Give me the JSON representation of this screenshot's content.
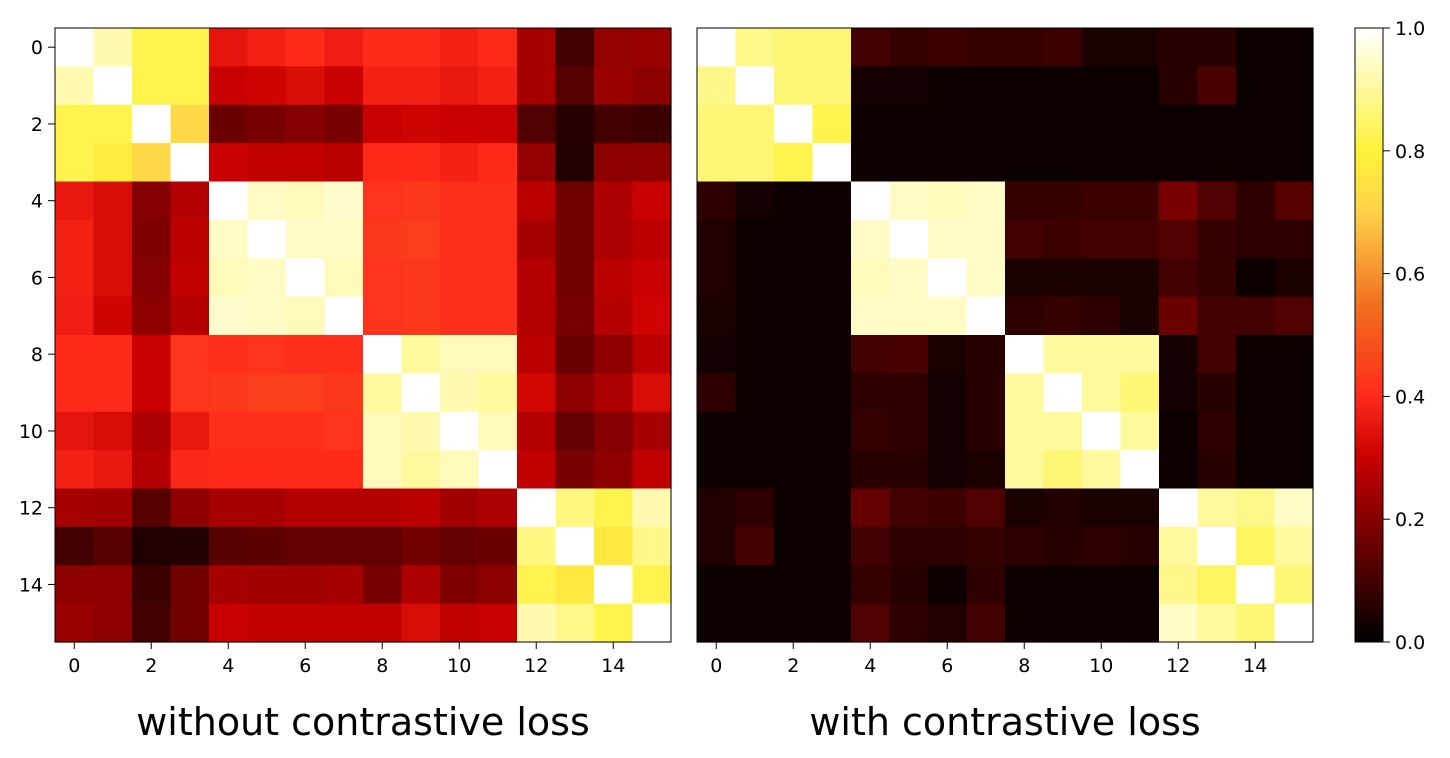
{
  "chart_data": [
    {
      "type": "heatmap",
      "title": "",
      "caption": "without contrastive loss",
      "xlabel": "",
      "ylabel": "",
      "x_ticks": [
        "0",
        "2",
        "4",
        "6",
        "8",
        "10",
        "12",
        "14"
      ],
      "y_ticks": [
        "0",
        "2",
        "4",
        "6",
        "8",
        "10",
        "12",
        "14"
      ],
      "size": 16,
      "vmin": 0.0,
      "vmax": 1.0,
      "colormap": "hot",
      "values": [
        [
          1.0,
          0.92,
          0.82,
          0.82,
          0.35,
          0.38,
          0.4,
          0.37,
          0.4,
          0.4,
          0.38,
          0.4,
          0.25,
          0.1,
          0.22,
          0.23
        ],
        [
          0.92,
          1.0,
          0.82,
          0.82,
          0.3,
          0.31,
          0.33,
          0.3,
          0.38,
          0.38,
          0.36,
          0.38,
          0.25,
          0.13,
          0.23,
          0.21
        ],
        [
          0.82,
          0.82,
          1.0,
          0.72,
          0.16,
          0.18,
          0.2,
          0.18,
          0.3,
          0.31,
          0.3,
          0.3,
          0.12,
          0.06,
          0.1,
          0.09
        ],
        [
          0.82,
          0.78,
          0.72,
          1.0,
          0.3,
          0.29,
          0.29,
          0.28,
          0.4,
          0.4,
          0.38,
          0.4,
          0.22,
          0.05,
          0.21,
          0.21
        ],
        [
          0.36,
          0.33,
          0.2,
          0.27,
          1.0,
          0.94,
          0.93,
          0.95,
          0.42,
          0.43,
          0.41,
          0.41,
          0.28,
          0.17,
          0.26,
          0.3
        ],
        [
          0.38,
          0.33,
          0.19,
          0.28,
          0.94,
          1.0,
          0.94,
          0.94,
          0.43,
          0.44,
          0.41,
          0.41,
          0.25,
          0.17,
          0.26,
          0.28
        ],
        [
          0.38,
          0.33,
          0.2,
          0.29,
          0.93,
          0.94,
          1.0,
          0.93,
          0.42,
          0.43,
          0.41,
          0.41,
          0.27,
          0.17,
          0.28,
          0.3
        ],
        [
          0.37,
          0.31,
          0.21,
          0.27,
          0.95,
          0.94,
          0.93,
          1.0,
          0.42,
          0.43,
          0.41,
          0.41,
          0.27,
          0.18,
          0.27,
          0.31
        ],
        [
          0.4,
          0.4,
          0.3,
          0.42,
          0.41,
          0.42,
          0.41,
          0.41,
          1.0,
          0.9,
          0.93,
          0.93,
          0.28,
          0.16,
          0.21,
          0.28
        ],
        [
          0.4,
          0.4,
          0.3,
          0.42,
          0.43,
          0.44,
          0.44,
          0.43,
          0.9,
          1.0,
          0.92,
          0.9,
          0.32,
          0.21,
          0.26,
          0.33
        ],
        [
          0.35,
          0.33,
          0.26,
          0.36,
          0.41,
          0.41,
          0.41,
          0.42,
          0.93,
          0.92,
          1.0,
          0.93,
          0.27,
          0.15,
          0.2,
          0.25
        ],
        [
          0.38,
          0.36,
          0.27,
          0.39,
          0.4,
          0.4,
          0.4,
          0.4,
          0.93,
          0.9,
          0.93,
          1.0,
          0.29,
          0.18,
          0.21,
          0.29
        ],
        [
          0.25,
          0.24,
          0.13,
          0.21,
          0.25,
          0.25,
          0.27,
          0.27,
          0.27,
          0.28,
          0.24,
          0.26,
          1.0,
          0.87,
          0.82,
          0.92
        ],
        [
          0.1,
          0.13,
          0.05,
          0.05,
          0.13,
          0.14,
          0.15,
          0.15,
          0.15,
          0.17,
          0.15,
          0.16,
          0.87,
          1.0,
          0.77,
          0.88
        ],
        [
          0.21,
          0.21,
          0.09,
          0.17,
          0.25,
          0.24,
          0.24,
          0.25,
          0.18,
          0.26,
          0.19,
          0.21,
          0.82,
          0.77,
          1.0,
          0.82
        ],
        [
          0.23,
          0.21,
          0.1,
          0.17,
          0.3,
          0.29,
          0.29,
          0.29,
          0.29,
          0.33,
          0.29,
          0.3,
          0.92,
          0.88,
          0.82,
          1.0
        ]
      ]
    },
    {
      "type": "heatmap",
      "title": "",
      "caption": "with contrastive loss",
      "xlabel": "",
      "ylabel": "",
      "x_ticks": [
        "0",
        "2",
        "4",
        "6",
        "8",
        "10",
        "12",
        "14"
      ],
      "y_ticks": [],
      "size": 16,
      "vmin": 0.0,
      "vmax": 1.0,
      "colormap": "hot",
      "values": [
        [
          1.0,
          0.88,
          0.86,
          0.86,
          0.1,
          0.08,
          0.09,
          0.08,
          0.08,
          0.09,
          0.04,
          0.04,
          0.06,
          0.06,
          0.02,
          0.02
        ],
        [
          0.88,
          1.0,
          0.86,
          0.86,
          0.03,
          0.03,
          0.02,
          0.02,
          0.02,
          0.02,
          0.02,
          0.02,
          0.06,
          0.11,
          0.02,
          0.02
        ],
        [
          0.86,
          0.86,
          1.0,
          0.82,
          0.02,
          0.02,
          0.02,
          0.02,
          0.02,
          0.02,
          0.02,
          0.02,
          0.02,
          0.02,
          0.02,
          0.02
        ],
        [
          0.86,
          0.86,
          0.82,
          1.0,
          0.02,
          0.02,
          0.02,
          0.02,
          0.02,
          0.02,
          0.02,
          0.02,
          0.02,
          0.02,
          0.02,
          0.02
        ],
        [
          0.07,
          0.03,
          0.02,
          0.02,
          1.0,
          0.94,
          0.93,
          0.94,
          0.08,
          0.08,
          0.09,
          0.09,
          0.18,
          0.12,
          0.07,
          0.13
        ],
        [
          0.05,
          0.02,
          0.02,
          0.02,
          0.94,
          1.0,
          0.94,
          0.94,
          0.1,
          0.09,
          0.1,
          0.1,
          0.12,
          0.08,
          0.07,
          0.07
        ],
        [
          0.05,
          0.02,
          0.02,
          0.02,
          0.93,
          0.94,
          1.0,
          0.94,
          0.04,
          0.04,
          0.04,
          0.04,
          0.1,
          0.08,
          0.02,
          0.04
        ],
        [
          0.04,
          0.02,
          0.02,
          0.02,
          0.94,
          0.94,
          0.94,
          1.0,
          0.07,
          0.08,
          0.07,
          0.04,
          0.16,
          0.1,
          0.1,
          0.12
        ],
        [
          0.03,
          0.02,
          0.02,
          0.02,
          0.1,
          0.11,
          0.04,
          0.06,
          1.0,
          0.9,
          0.9,
          0.9,
          0.03,
          0.1,
          0.02,
          0.02
        ],
        [
          0.07,
          0.02,
          0.02,
          0.02,
          0.07,
          0.07,
          0.03,
          0.06,
          0.9,
          1.0,
          0.9,
          0.86,
          0.03,
          0.06,
          0.02,
          0.02
        ],
        [
          0.02,
          0.02,
          0.02,
          0.02,
          0.08,
          0.07,
          0.03,
          0.06,
          0.9,
          0.9,
          1.0,
          0.9,
          0.02,
          0.07,
          0.02,
          0.02
        ],
        [
          0.02,
          0.02,
          0.02,
          0.02,
          0.06,
          0.06,
          0.03,
          0.04,
          0.9,
          0.86,
          0.9,
          1.0,
          0.02,
          0.06,
          0.02,
          0.02
        ],
        [
          0.05,
          0.07,
          0.02,
          0.02,
          0.15,
          0.1,
          0.09,
          0.12,
          0.04,
          0.05,
          0.04,
          0.04,
          1.0,
          0.9,
          0.88,
          0.94
        ],
        [
          0.05,
          0.1,
          0.02,
          0.02,
          0.1,
          0.07,
          0.07,
          0.08,
          0.07,
          0.06,
          0.07,
          0.06,
          0.9,
          1.0,
          0.84,
          0.9
        ],
        [
          0.02,
          0.02,
          0.02,
          0.02,
          0.08,
          0.06,
          0.02,
          0.07,
          0.02,
          0.02,
          0.02,
          0.02,
          0.88,
          0.84,
          1.0,
          0.86
        ],
        [
          0.02,
          0.02,
          0.02,
          0.02,
          0.12,
          0.07,
          0.05,
          0.1,
          0.02,
          0.02,
          0.02,
          0.02,
          0.94,
          0.9,
          0.86,
          1.0
        ]
      ]
    }
  ],
  "colorbar": {
    "ticks": [
      "0.0",
      "0.2",
      "0.4",
      "0.6",
      "0.8",
      "1.0"
    ],
    "vmin": 0.0,
    "vmax": 1.0
  },
  "captions": {
    "left": "without contrastive loss",
    "right": "with contrastive loss"
  }
}
